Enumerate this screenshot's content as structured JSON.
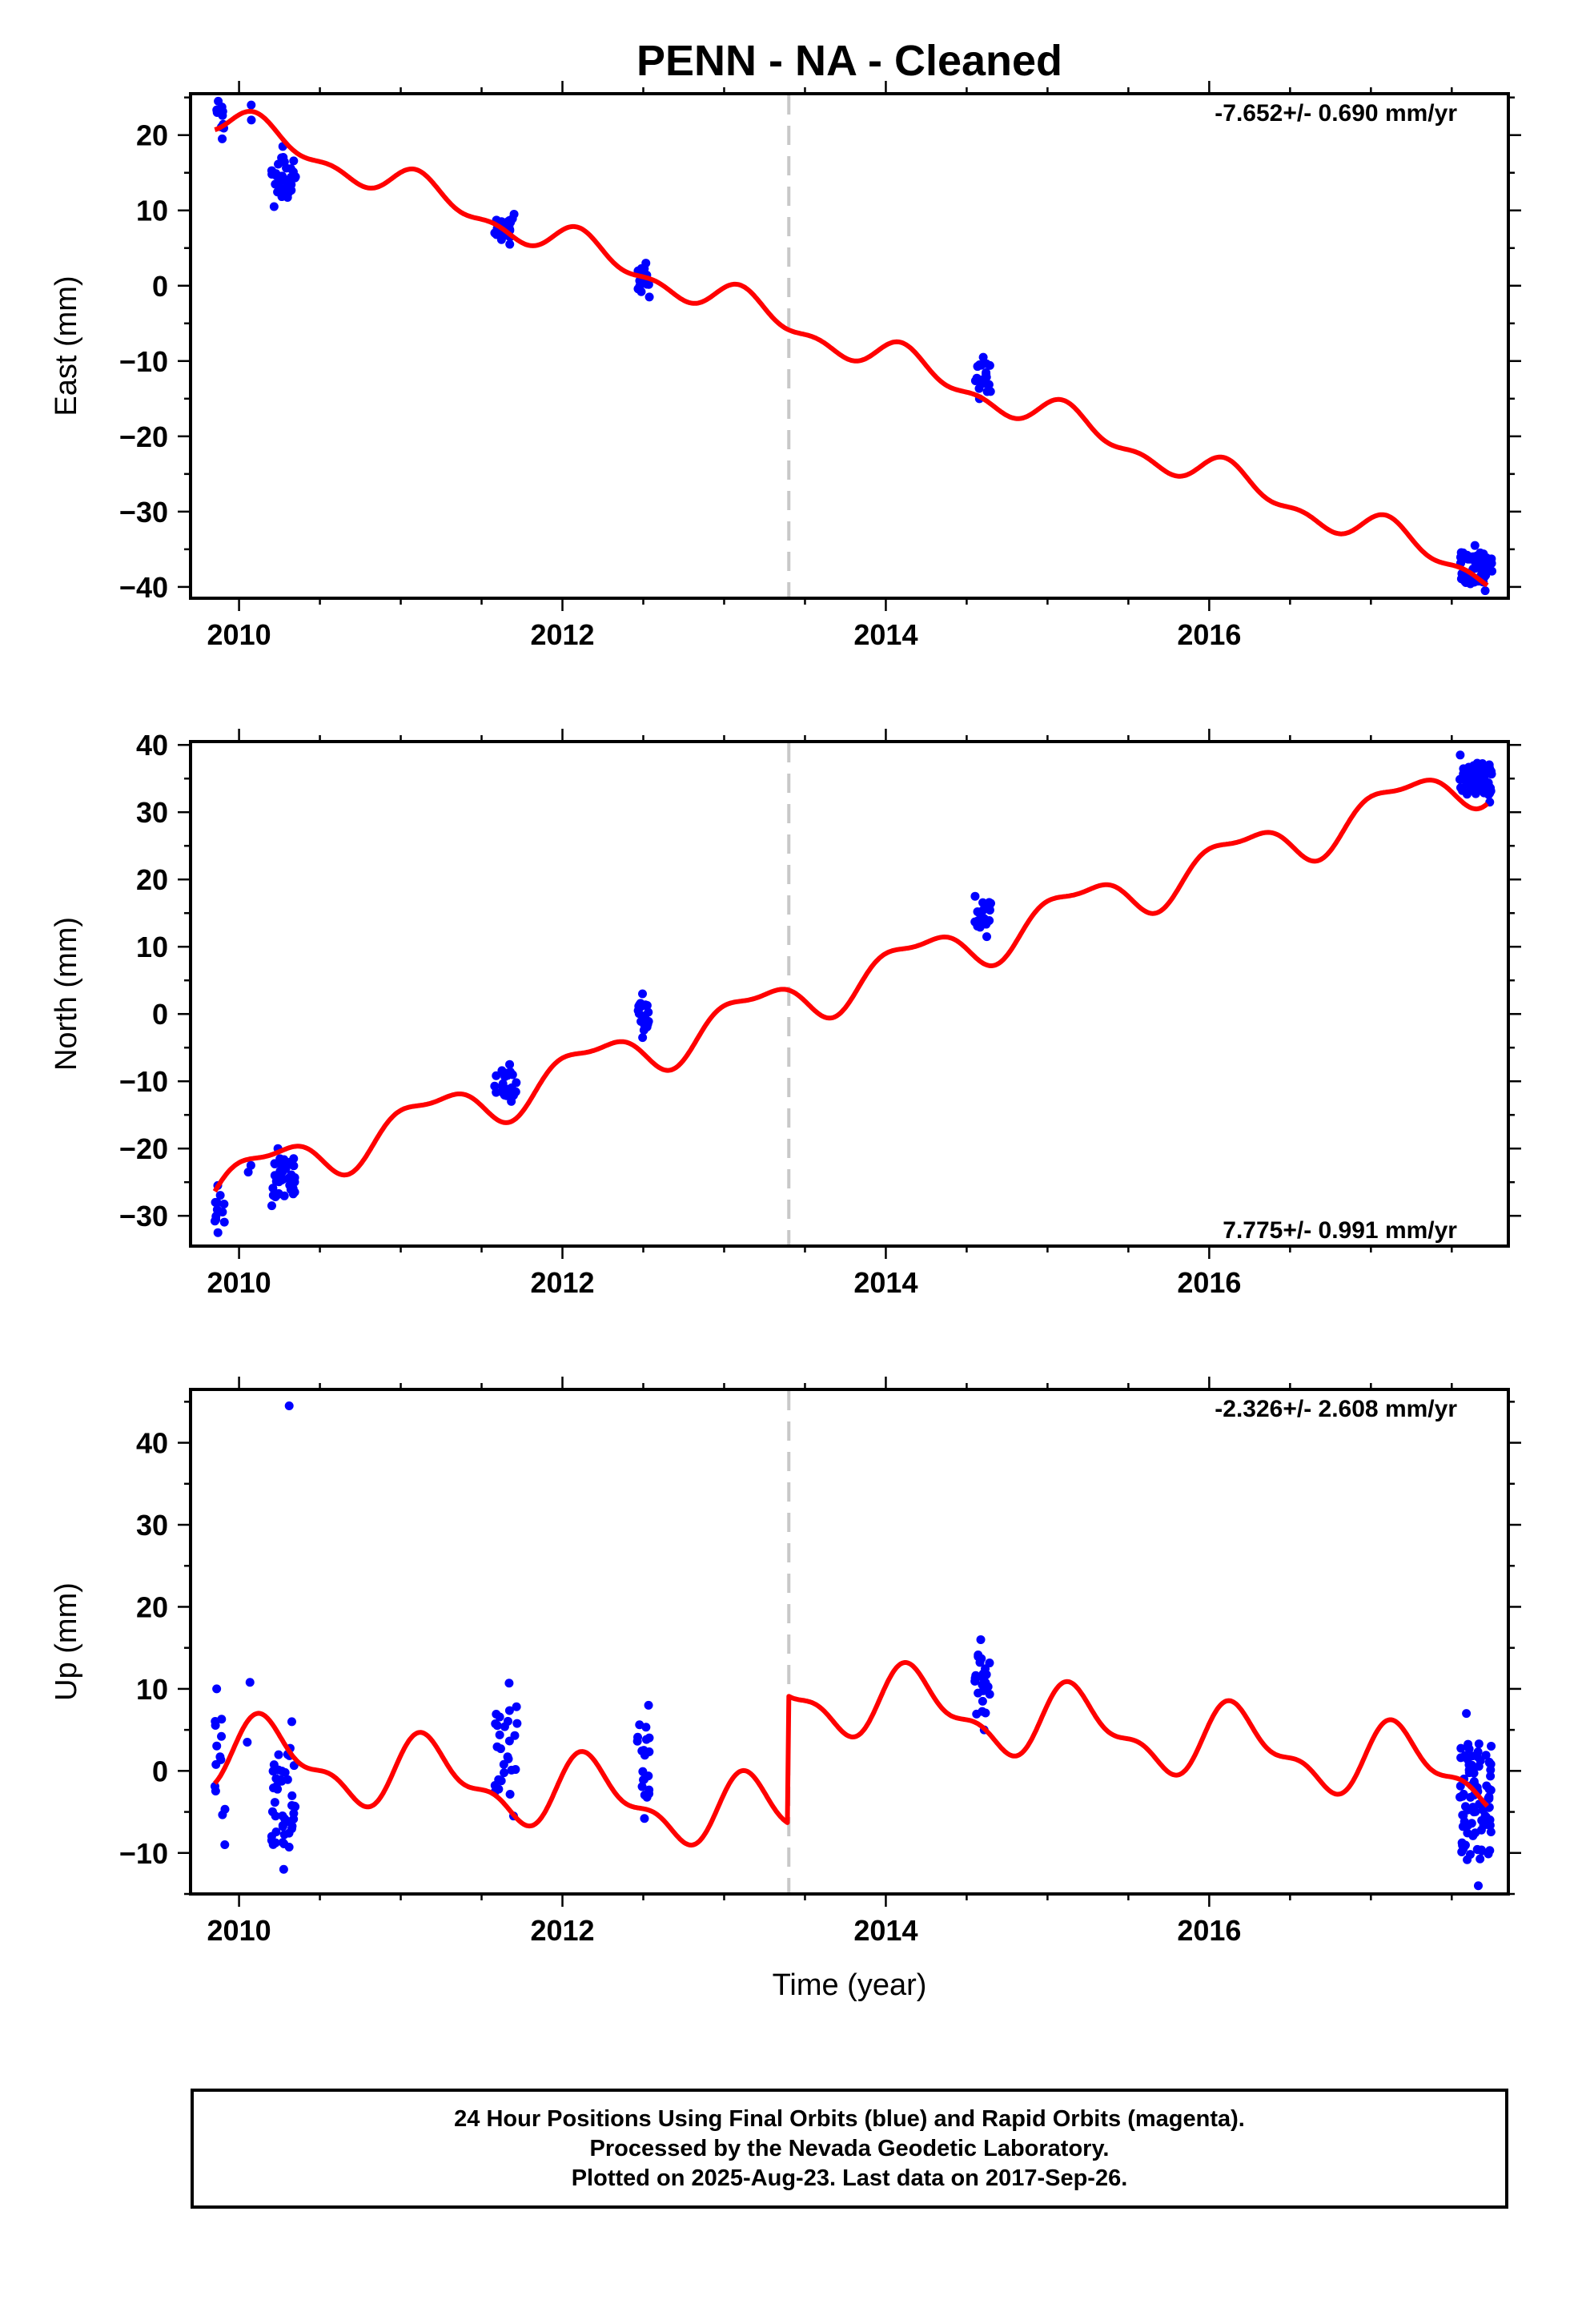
{
  "title": "PENN  - NA - Cleaned",
  "xlabel": "Time (year)",
  "caption": {
    "line1": "24 Hour Positions Using Final Orbits (blue) and Rapid Orbits (magenta).",
    "line2": "Processed by the Nevada Geodetic Laboratory.",
    "line3": "Plotted on 2025-Aug-23. Last data on 2017-Sep-26."
  },
  "colors": {
    "data_points": "#0000ff",
    "model_line": "#ff0000",
    "event_line": "#c8c8c8",
    "frame": "#000000"
  },
  "chart_data": [
    {
      "type": "scatter",
      "component": "east",
      "ylabel": "East (mm)",
      "rate_label": "-7.652+/- 0.690 mm/yr",
      "rate_position": "top-right",
      "xlim": [
        2009.7,
        2017.85
      ],
      "ylim": [
        -41.5,
        25.5
      ],
      "xticks": [
        2010,
        2012,
        2014,
        2016
      ],
      "xtick_labels": [
        "2010",
        "2012",
        "2014",
        "2016"
      ],
      "yticks": [
        -40,
        -30,
        -20,
        -10,
        0,
        10,
        20
      ],
      "event_lines": [
        2013.4
      ],
      "model": {
        "trend_rate": -7.652,
        "start": 2009.85,
        "end": 2017.72,
        "reference_epoch": 2010.0,
        "offset": 21.0,
        "steps": [],
        "annual_sin": 1.4,
        "annual_cos": 1.2,
        "semiannual_sin": 0.9,
        "semiannual_cos": 0.5
      },
      "clusters": [
        {
          "x": [
            2009.85,
            2009.92
          ],
          "y": [
            19.5,
            24.5
          ],
          "n": 10
        },
        {
          "x": [
            2010.05,
            2010.08
          ],
          "y": [
            22.0,
            24.0
          ],
          "n": 2
        },
        {
          "x": [
            2010.2,
            2010.35
          ],
          "y": [
            10.5,
            18.5
          ],
          "n": 40
        },
        {
          "x": [
            2011.58,
            2011.72
          ],
          "y": [
            5.5,
            9.5
          ],
          "n": 25
        },
        {
          "x": [
            2012.46,
            2012.54
          ],
          "y": [
            -1.5,
            3.0
          ],
          "n": 20
        },
        {
          "x": [
            2014.55,
            2014.65
          ],
          "y": [
            -15.0,
            -9.5
          ],
          "n": 22
        },
        {
          "x": [
            2017.55,
            2017.75
          ],
          "y": [
            -40.5,
            -34.5
          ],
          "n": 70
        }
      ]
    },
    {
      "type": "scatter",
      "component": "north",
      "ylabel": "North (mm)",
      "rate_label": "7.775+/- 0.991 mm/yr",
      "rate_position": "bottom-right",
      "xlim": [
        2009.7,
        2017.85
      ],
      "ylim": [
        -34.5,
        40.5
      ],
      "xticks": [
        2010,
        2012,
        2014,
        2016
      ],
      "xtick_labels": [
        "2010",
        "2012",
        "2014",
        "2016"
      ],
      "yticks": [
        -30,
        -20,
        -10,
        0,
        10,
        20,
        30,
        40
      ],
      "event_lines": [
        2013.4
      ],
      "model": {
        "trend_rate": 7.775,
        "start": 2009.85,
        "end": 2017.72,
        "reference_epoch": 2010.0,
        "offset": -24.5,
        "steps": [],
        "annual_sin": 2.9,
        "annual_cos": 1.6,
        "semiannual_sin": -1.0,
        "semiannual_cos": 0.8
      },
      "clusters": [
        {
          "x": [
            2009.85,
            2009.92
          ],
          "y": [
            -32.5,
            -25.5
          ],
          "n": 12
        },
        {
          "x": [
            2010.05,
            2010.08
          ],
          "y": [
            -23.5,
            -22.5
          ],
          "n": 2
        },
        {
          "x": [
            2010.2,
            2010.35
          ],
          "y": [
            -28.5,
            -20.0
          ],
          "n": 40
        },
        {
          "x": [
            2011.58,
            2011.72
          ],
          "y": [
            -13.0,
            -7.5
          ],
          "n": 25
        },
        {
          "x": [
            2012.46,
            2012.54
          ],
          "y": [
            -3.5,
            3.0
          ],
          "n": 20
        },
        {
          "x": [
            2014.55,
            2014.65
          ],
          "y": [
            11.5,
            17.5
          ],
          "n": 22
        },
        {
          "x": [
            2017.55,
            2017.75
          ],
          "y": [
            31.5,
            38.5
          ],
          "n": 70
        }
      ]
    },
    {
      "type": "scatter",
      "component": "up",
      "ylabel": "Up (mm)",
      "rate_label": "-2.326+/- 2.608 mm/yr",
      "rate_position": "top-right",
      "xlim": [
        2009.7,
        2017.85
      ],
      "ylim": [
        -15,
        46.5
      ],
      "xticks": [
        2010,
        2012,
        2014,
        2016
      ],
      "xtick_labels": [
        "2010",
        "2012",
        "2014",
        "2016"
      ],
      "yticks": [
        -10,
        0,
        10,
        20,
        30,
        40
      ],
      "event_lines": [
        2013.4
      ],
      "model": {
        "trend_rate": -2.326,
        "start": 2009.85,
        "end": 2017.72,
        "reference_epoch": 2010.0,
        "offset": 2.0,
        "steps": [
          {
            "at": 2013.4,
            "size": 15.5
          }
        ],
        "annual_sin": 3.6,
        "annual_cos": 1.5,
        "semiannual_sin": 1.7,
        "semiannual_cos": 0.7
      },
      "clusters": [
        {
          "x": [
            2009.85,
            2009.92
          ],
          "y": [
            -9.0,
            10.0
          ],
          "n": 14
        },
        {
          "x": [
            2010.05,
            2010.08
          ],
          "y": [
            3.5,
            10.8
          ],
          "n": 2
        },
        {
          "x": [
            2010.2,
            2010.35
          ],
          "y": [
            -12.0,
            6.0
          ],
          "n": 45
        },
        {
          "x": [
            2011.58,
            2011.72
          ],
          "y": [
            -5.5,
            10.7
          ],
          "n": 28
        },
        {
          "x": [
            2012.46,
            2012.54
          ],
          "y": [
            -5.8,
            8.0
          ],
          "n": 22
        },
        {
          "x": [
            2014.55,
            2014.65
          ],
          "y": [
            5.0,
            16.0
          ],
          "n": 28
        },
        {
          "x": [
            2017.55,
            2017.75
          ],
          "y": [
            -14.0,
            7.0
          ],
          "n": 90
        }
      ],
      "outliers": [
        {
          "x": 2010.31,
          "y": 44.5
        }
      ]
    }
  ]
}
